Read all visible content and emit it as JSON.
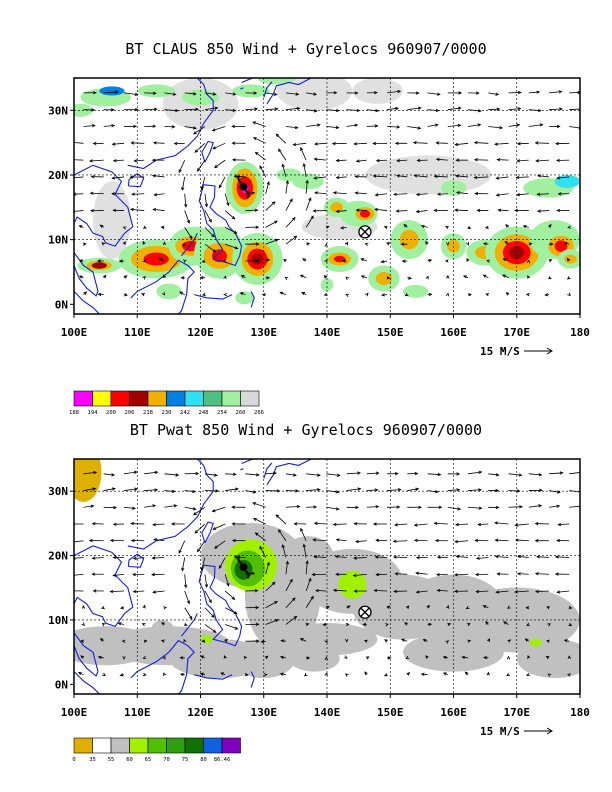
{
  "panels": [
    {
      "title": "BT CLAUS 850 Wind + Gyrelocs 960907/0000",
      "lat_labels": [
        "30N",
        "20N",
        "10N",
        "0N"
      ],
      "lon_labels": [
        "100E",
        "110E",
        "120E",
        "130E",
        "140E",
        "150E",
        "160E",
        "170E",
        "180"
      ],
      "vector_ref": "15 M/S",
      "colorbar": {
        "colors": [
          "#ff00ff",
          "#ffff00",
          "#ff0000",
          "#a00000",
          "#f0b000",
          "#0080e0",
          "#30e0f0",
          "#50c080",
          "#a0f0a0",
          "#d8d8d8"
        ],
        "labels": [
          "188",
          "194",
          "200",
          "206",
          "218",
          "230",
          "242",
          "248",
          "254",
          "260",
          "266"
        ]
      }
    },
    {
      "title": "BT Pwat 850 Wind + Gyrelocs 960907/0000",
      "lat_labels": [
        "30N",
        "20N",
        "10N",
        "0N"
      ],
      "lon_labels": [
        "100E",
        "110E",
        "120E",
        "130E",
        "140E",
        "150E",
        "160E",
        "170E",
        "180"
      ],
      "vector_ref": "15 M/S",
      "colorbar": {
        "colors": [
          "#e0b000",
          "#ffffff",
          "#c0c0c0",
          "#a0f000",
          "#50c000",
          "#30a010",
          "#107000",
          "#1060e0",
          "#8000c0"
        ],
        "labels": [
          "0",
          "35",
          "55",
          "60",
          "65",
          "70",
          "75",
          "80",
          "86.46"
        ]
      }
    }
  ]
}
